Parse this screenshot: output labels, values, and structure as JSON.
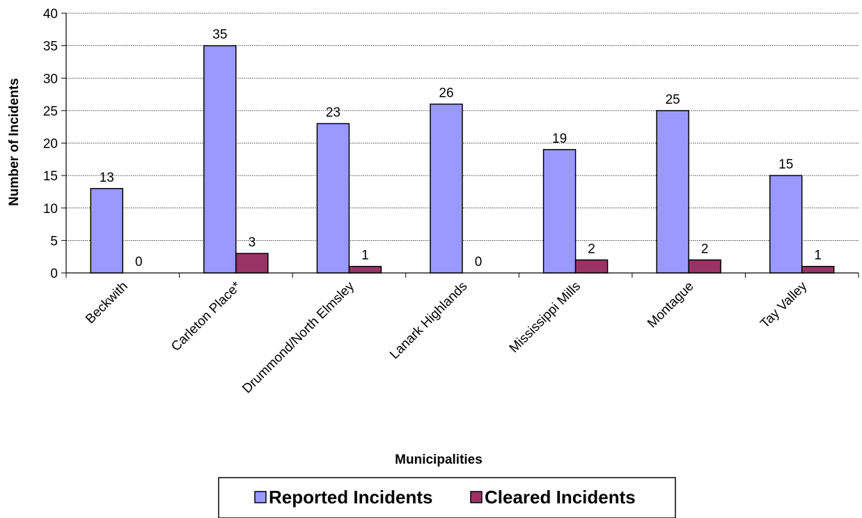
{
  "chart_data": {
    "type": "bar",
    "title": "",
    "xlabel": "Municipalities",
    "ylabel": "Number of Incidents",
    "ylim": [
      0,
      40
    ],
    "yticks": [
      0,
      5,
      10,
      15,
      20,
      25,
      30,
      35,
      40
    ],
    "grid": true,
    "legend_position": "bottom",
    "categories": [
      "Beckwith",
      "Carleton Place*",
      "Drummond/North Elmsley",
      "Lanark Highlands",
      "Mississippi Mills",
      "Montague",
      "Tay Valley"
    ],
    "series": [
      {
        "name": "Reported Incidents",
        "color": "#9999ff",
        "values": [
          13,
          35,
          23,
          26,
          19,
          25,
          15
        ]
      },
      {
        "name": "Cleared Incidents",
        "color": "#993366",
        "values": [
          0,
          3,
          1,
          0,
          2,
          2,
          1
        ]
      }
    ]
  }
}
